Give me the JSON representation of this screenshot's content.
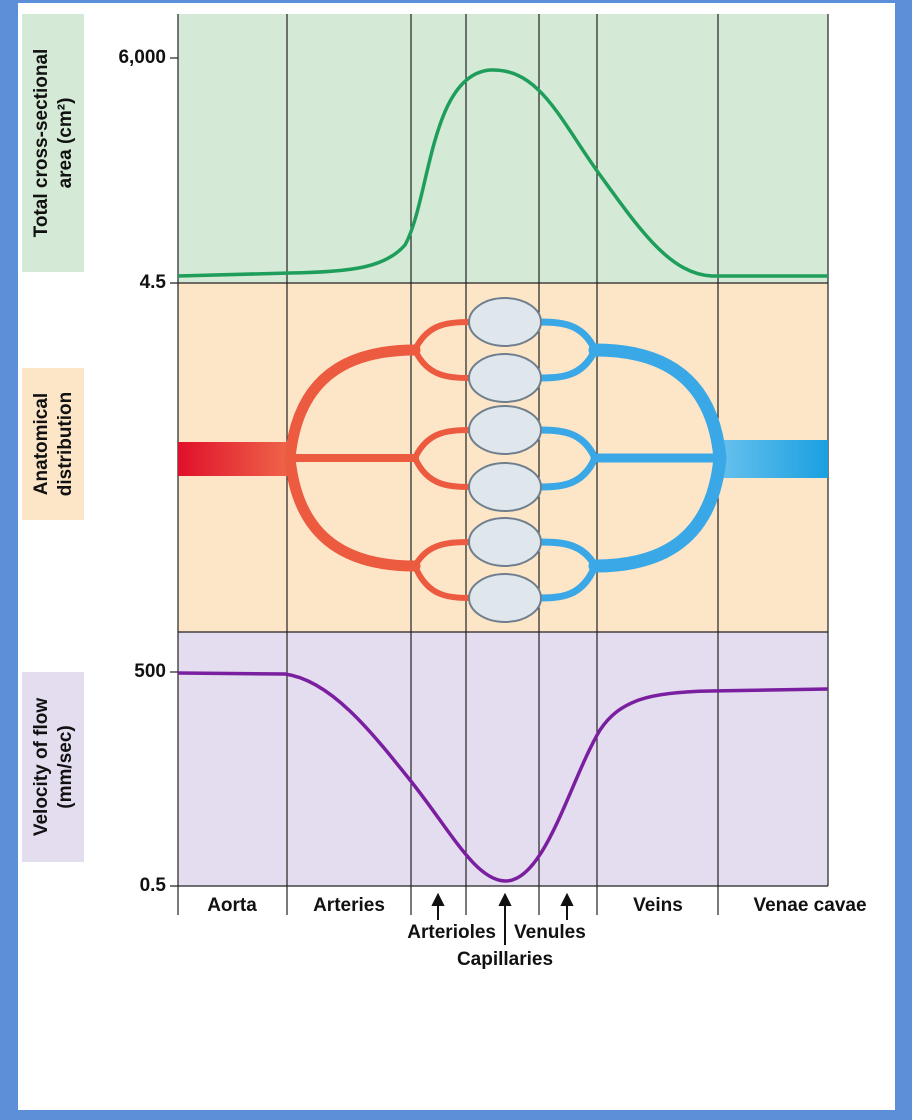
{
  "panels": {
    "area": {
      "label": [
        "Total cross-sectional",
        "area (cm²)"
      ],
      "ticks": [
        "6,000",
        "4.5"
      ]
    },
    "anatomy": {
      "label": [
        "Anatomical",
        "distribution"
      ]
    },
    "velocity": {
      "label": [
        "Velocity of flow",
        "(mm/sec)"
      ],
      "ticks": [
        "500",
        "0.5"
      ]
    }
  },
  "segments": [
    "Aorta",
    "Arteries",
    "Arterioles",
    "Capillaries",
    "Venules",
    "Veins",
    "Venae cavae"
  ]
}
